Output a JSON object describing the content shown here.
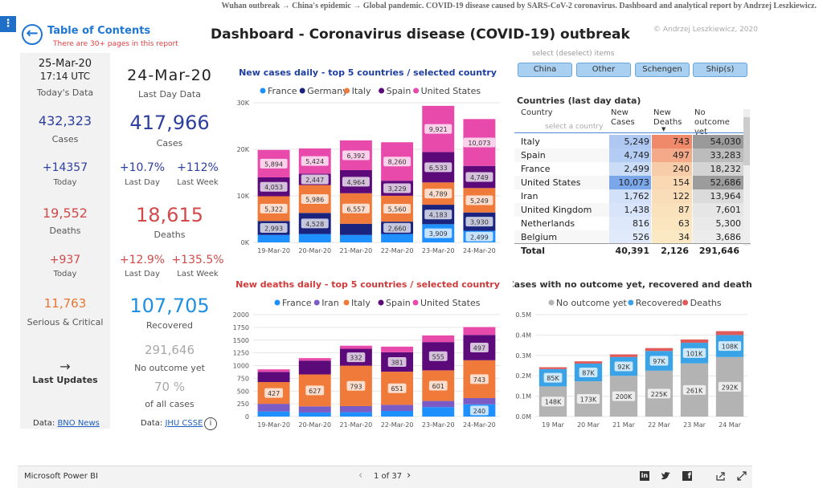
{
  "caption": "Wuhan outbreak → China's epidemic → Global pandemic. COVID-19 disease caused by SARS-CoV-2 coronavirus. Dashboard and analytical report by Andrzej Leszkiewicz.",
  "header": {
    "toc_title": "Table of Contents",
    "toc_sub": "There are 30+ pages in this report",
    "title": "Dashboard - Coronavirus disease (COVID-19) outbreak",
    "copyright": "© Andrzej Leszkiewicz, 2020"
  },
  "left": {
    "date": "25-Mar-20",
    "time": "17:14 UTC",
    "todays_label": "Today's Data",
    "cases": "432,323",
    "cases_label": "Cases",
    "cases_today": "+14357",
    "today_label": "Today",
    "deaths": "19,552",
    "deaths_label": "Deaths",
    "deaths_today": "+937",
    "deaths_today_label": "Today",
    "serious": "11,763",
    "serious_label": "Serious & Critical",
    "arrow": "→",
    "last_updates": "Last Updates",
    "data_prefix": "Data:",
    "data_link": "BNO News"
  },
  "col2": {
    "date": "24-Mar-20",
    "label": "Last Day Data",
    "cases": "417,966",
    "cases_label": "Cases",
    "pct_day": "+10.7%",
    "pct_week": "+112%",
    "last_day": "Last Day",
    "last_week": "Last Week",
    "deaths": "18,615",
    "deaths_label": "Deaths",
    "d_pct_day": "+12.9%",
    "d_pct_week": "+135.5%",
    "d_last_day": "Last Day",
    "d_last_week": "Last Week",
    "recovered": "107,705",
    "recovered_label": "Recovered",
    "no_outcome": "291,646",
    "no_outcome_label": "No outcome yet",
    "pct": "70 %",
    "pct_label": "of all cases",
    "data_prefix": "Data:",
    "data_link": "JHU CSSE",
    "info": "i"
  },
  "filters": {
    "hint": "select (deselect) items",
    "chips": [
      "China",
      "Other",
      "Schengen",
      "Ship(s)"
    ]
  },
  "table": {
    "title": "Countries (last day data)",
    "headers": [
      "Country",
      "New Cases",
      "New Deaths",
      "No outcome yet"
    ],
    "search_placeholder": "select a country",
    "rows": [
      [
        "Italy",
        "5,249",
        "743",
        "54,030"
      ],
      [
        "Spain",
        "4,749",
        "497",
        "33,283"
      ],
      [
        "France",
        "2,499",
        "240",
        "18,232"
      ],
      [
        "United States",
        "10,073",
        "154",
        "52,686"
      ],
      [
        "Iran",
        "1,762",
        "122",
        "13,964"
      ],
      [
        "United Kingdom",
        "1,438",
        "87",
        "7,601"
      ],
      [
        "Netherlands",
        "816",
        "63",
        "5,300"
      ],
      [
        "Belgium",
        "526",
        "34",
        "3,686"
      ]
    ],
    "total": [
      "Total",
      "40,391",
      "2,126",
      "291,646"
    ]
  },
  "footer": {
    "brand": "Microsoft Power BI",
    "page": "1 of 37"
  },
  "colors": {
    "france": "#1e90ff",
    "germany": "#1a237e",
    "italy": "#f07a3a",
    "spain": "#5c0a7a",
    "us": "#e84aac",
    "iran": "#7b5cc7",
    "no_outcome": "#b3b3b3",
    "recovered": "#3aa3e8",
    "deaths": "#e05a5a"
  },
  "chart_data": [
    {
      "type": "bar",
      "stacked": true,
      "title": "New cases daily - top 5 countries / selected country",
      "categories": [
        "19-Mar-20",
        "20-Mar-20",
        "21-Mar-20",
        "22-Mar-20",
        "23-Mar-20",
        "24-Mar-20"
      ],
      "y_ticks": [
        "0K",
        "10K",
        "20K",
        "30K"
      ],
      "ylim": [
        0,
        30000
      ],
      "series": [
        {
          "name": "France",
          "values": [
            1600,
            1800,
            1600,
            1800,
            3909,
            2499
          ],
          "labels": [
            "",
            "",
            "",
            "",
            "3,909",
            "2,499"
          ]
        },
        {
          "name": "Germany",
          "values": [
            2993,
            4528,
            2400,
            2660,
            4183,
            3930
          ],
          "labels": [
            "2,993",
            "4,528",
            "",
            "2,660",
            "4,183",
            "3,930"
          ]
        },
        {
          "name": "Italy",
          "values": [
            5322,
            5986,
            6557,
            5560,
            4789,
            5249
          ],
          "labels": [
            "5,322",
            "5,986",
            "6,557",
            "5,560",
            "4,789",
            "5,249"
          ]
        },
        {
          "name": "Spain",
          "values": [
            4053,
            2447,
            4964,
            3229,
            6533,
            4749
          ],
          "labels": [
            "4,053",
            "2,447",
            "4,964",
            "3,229",
            "6,533",
            "4,749"
          ]
        },
        {
          "name": "United States",
          "values": [
            5894,
            5424,
            6392,
            8260,
            9921,
            10073
          ],
          "labels": [
            "5,894",
            "5,424",
            "6,392",
            "8,260",
            "9,921",
            "10,073"
          ]
        }
      ]
    },
    {
      "type": "bar",
      "stacked": true,
      "title": "New deaths daily - top 5 countries / selected country",
      "categories": [
        "19-Mar-20",
        "20-Mar-20",
        "21-Mar-20",
        "22-Mar-20",
        "23-Mar-20",
        "24-Mar-20"
      ],
      "y_ticks": [
        "0",
        "250",
        "500",
        "750",
        "1000",
        "1250",
        "1500",
        "1750",
        "2000"
      ],
      "ylim": [
        0,
        2000
      ],
      "series": [
        {
          "name": "France",
          "values": [
            100,
            80,
            85,
            110,
            186,
            240
          ],
          "labels": [
            "",
            "",
            "",
            "",
            "",
            "240"
          ]
        },
        {
          "name": "Iran",
          "values": [
            150,
            120,
            120,
            120,
            120,
            122
          ],
          "labels": [
            "",
            "",
            "",
            "",
            "",
            ""
          ]
        },
        {
          "name": "Italy",
          "values": [
            427,
            627,
            793,
            651,
            601,
            743
          ],
          "labels": [
            "427",
            "627",
            "793",
            "651",
            "601",
            "743"
          ]
        },
        {
          "name": "Spain",
          "values": [
            200,
            270,
            332,
            381,
            555,
            497
          ],
          "labels": [
            "",
            "",
            "332",
            "381",
            "555",
            "497"
          ]
        },
        {
          "name": "United States",
          "values": [
            50,
            50,
            60,
            110,
            130,
            154
          ],
          "labels": [
            "",
            "",
            "",
            "",
            "",
            ""
          ]
        }
      ]
    },
    {
      "type": "bar",
      "stacked": true,
      "title": "Cases with no outcome yet, recovered and deaths",
      "categories": [
        "19 Mar",
        "20 Mar",
        "21 Mar",
        "22 Mar",
        "23 Mar",
        "24 Mar"
      ],
      "y_ticks": [
        "0.0M",
        "0.1M",
        "0.2M",
        "0.3M",
        "0.4M",
        "0.5M"
      ],
      "ylim": [
        0,
        500000
      ],
      "series": [
        {
          "name": "No outcome yet",
          "values": [
            148000,
            173000,
            200000,
            225000,
            261000,
            292000
          ],
          "labels": [
            "148K",
            "173K",
            "200K",
            "225K",
            "261K",
            "292K"
          ]
        },
        {
          "name": "Recovered",
          "values": [
            85000,
            87000,
            92000,
            97000,
            101000,
            108000
          ],
          "labels": [
            "85K",
            "87K",
            "92K",
            "97K",
            "101K",
            "108K"
          ]
        },
        {
          "name": "Deaths",
          "values": [
            9000,
            11000,
            13000,
            14000,
            16000,
            19000
          ],
          "labels": [
            "",
            "",
            "",
            "",
            "",
            ""
          ]
        }
      ]
    }
  ]
}
